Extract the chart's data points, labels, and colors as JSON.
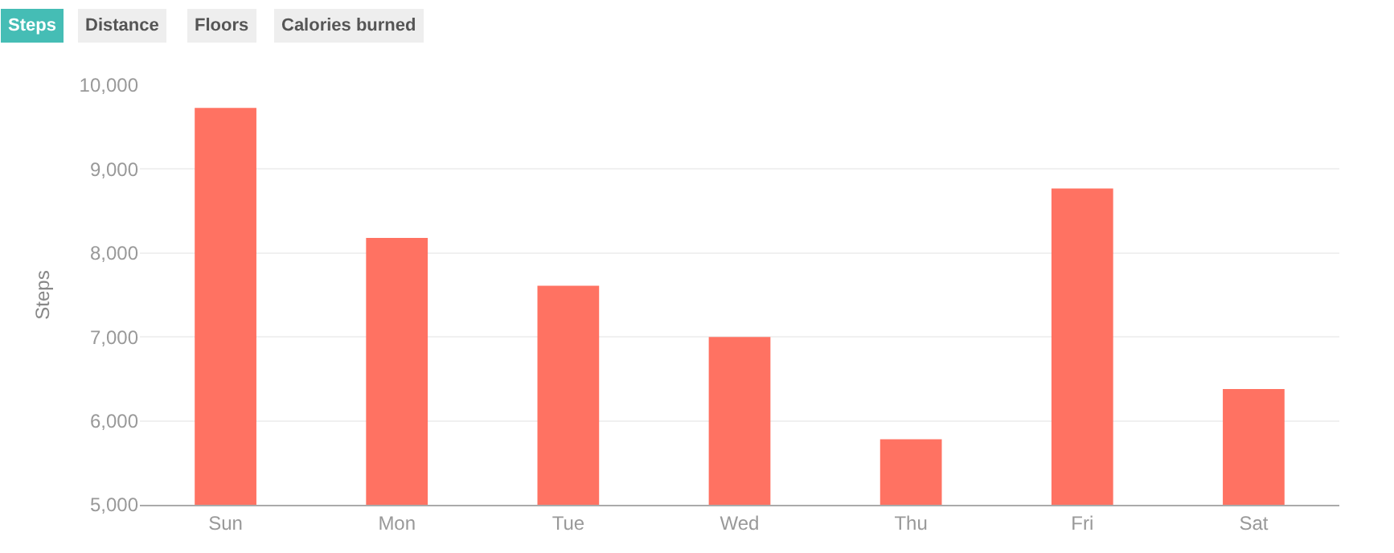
{
  "chart_data": {
    "type": "bar",
    "ylabel": "Steps",
    "annotations": [
      "Steps",
      "Distance",
      "Floors",
      "Calories burned"
    ],
    "categories": [
      "Sun",
      "Mon",
      "Tue",
      "Wed",
      "Thu",
      "Fri",
      "Sat"
    ],
    "values": [
      9730,
      8180,
      7610,
      7000,
      5780,
      8770,
      6380
    ],
    "color": "#ff7262",
    "ylim": [
      5000,
      10000
    ],
    "yticks": [
      {
        "value": 5000,
        "label": "5,000"
      },
      {
        "value": 6000,
        "label": "6,000"
      },
      {
        "value": 7000,
        "label": "7,000"
      },
      {
        "value": 8000,
        "label": "8,000"
      },
      {
        "value": 9000,
        "label": "9,000"
      },
      {
        "value": 10000,
        "label": "10,000"
      }
    ],
    "grid": "y"
  }
}
